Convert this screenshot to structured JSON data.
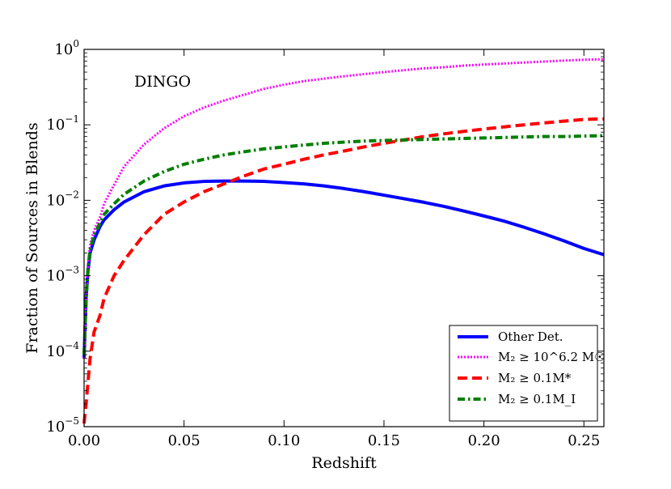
{
  "chart_data": {
    "type": "line",
    "title": "",
    "annotation": "DINGO",
    "xlabel": "Redshift",
    "ylabel": "Fraction of Sources in Blends",
    "xlim": [
      0.0,
      0.26
    ],
    "ylim": [
      1e-05,
      1.0
    ],
    "yscale": "log",
    "grid": false,
    "legend_position": "bottom-right",
    "x_ticks": [
      {
        "value": 0.0,
        "label": "0.00"
      },
      {
        "value": 0.05,
        "label": "0.05"
      },
      {
        "value": 0.1,
        "label": "0.10"
      },
      {
        "value": 0.15,
        "label": "0.15"
      },
      {
        "value": 0.2,
        "label": "0.20"
      },
      {
        "value": 0.25,
        "label": "0.25"
      }
    ],
    "y_ticks": [
      {
        "value": 1e-05,
        "base": "10",
        "exp": "−5"
      },
      {
        "value": 0.0001,
        "base": "10",
        "exp": "−4"
      },
      {
        "value": 0.001,
        "base": "10",
        "exp": "−3"
      },
      {
        "value": 0.01,
        "base": "10",
        "exp": "−2"
      },
      {
        "value": 0.1,
        "base": "10",
        "exp": "−1"
      },
      {
        "value": 1.0,
        "base": "10",
        "exp": "0"
      }
    ],
    "series": [
      {
        "name": "Other Det.",
        "color": "#0000ff",
        "style": "solid",
        "x": [
          0.0,
          0.001,
          0.002,
          0.003,
          0.005,
          0.008,
          0.01,
          0.015,
          0.02,
          0.03,
          0.04,
          0.05,
          0.06,
          0.07,
          0.08,
          0.09,
          0.1,
          0.11,
          0.12,
          0.13,
          0.14,
          0.15,
          0.16,
          0.17,
          0.18,
          0.19,
          0.2,
          0.21,
          0.22,
          0.23,
          0.24,
          0.25,
          0.26
        ],
        "y": [
          8e-05,
          0.0005,
          0.0012,
          0.002,
          0.003,
          0.0045,
          0.0055,
          0.0075,
          0.0095,
          0.013,
          0.0155,
          0.017,
          0.0178,
          0.018,
          0.018,
          0.0178,
          0.0172,
          0.0165,
          0.0155,
          0.0143,
          0.013,
          0.0117,
          0.0105,
          0.0094,
          0.0083,
          0.0072,
          0.0062,
          0.0053,
          0.0044,
          0.0036,
          0.0029,
          0.0023,
          0.0019
        ]
      },
      {
        "name": "M₂ ≥ 10^6.2 M☉",
        "color": "#ff00ff",
        "style": "dotted",
        "x": [
          0.0,
          0.001,
          0.002,
          0.003,
          0.005,
          0.008,
          0.01,
          0.015,
          0.02,
          0.03,
          0.04,
          0.05,
          0.06,
          0.07,
          0.08,
          0.09,
          0.1,
          0.11,
          0.12,
          0.13,
          0.14,
          0.15,
          0.16,
          0.17,
          0.18,
          0.19,
          0.2,
          0.21,
          0.22,
          0.23,
          0.24,
          0.25,
          0.26
        ],
        "y": [
          8e-05,
          0.0005,
          0.0014,
          0.0025,
          0.004,
          0.006,
          0.009,
          0.016,
          0.028,
          0.055,
          0.09,
          0.13,
          0.17,
          0.21,
          0.25,
          0.3,
          0.34,
          0.38,
          0.41,
          0.44,
          0.47,
          0.5,
          0.53,
          0.56,
          0.58,
          0.61,
          0.63,
          0.65,
          0.67,
          0.69,
          0.71,
          0.73,
          0.74
        ]
      },
      {
        "name": "M₂ ≥ 0.1M*",
        "color": "#ff0000",
        "style": "dashed",
        "x": [
          0.0,
          0.001,
          0.002,
          0.003,
          0.005,
          0.008,
          0.01,
          0.015,
          0.02,
          0.03,
          0.04,
          0.05,
          0.06,
          0.07,
          0.08,
          0.09,
          0.1,
          0.11,
          0.12,
          0.13,
          0.14,
          0.15,
          0.16,
          0.17,
          0.18,
          0.19,
          0.2,
          0.21,
          0.22,
          0.23,
          0.24,
          0.25,
          0.26
        ],
        "y": [
          1.1e-05,
          2e-05,
          4e-05,
          8e-05,
          0.00018,
          0.0003,
          0.0005,
          0.001,
          0.0016,
          0.0035,
          0.0065,
          0.0095,
          0.013,
          0.0165,
          0.021,
          0.026,
          0.03,
          0.035,
          0.04,
          0.045,
          0.051,
          0.057,
          0.063,
          0.07,
          0.076,
          0.082,
          0.088,
          0.094,
          0.1,
          0.106,
          0.112,
          0.118,
          0.12
        ]
      },
      {
        "name": "M₂ ≥ 0.1M_I",
        "color": "#007f00",
        "style": "dashdot",
        "x": [
          0.0,
          0.001,
          0.002,
          0.003,
          0.005,
          0.008,
          0.01,
          0.015,
          0.02,
          0.03,
          0.04,
          0.05,
          0.06,
          0.07,
          0.08,
          0.09,
          0.1,
          0.11,
          0.12,
          0.13,
          0.14,
          0.15,
          0.16,
          0.17,
          0.18,
          0.19,
          0.2,
          0.21,
          0.22,
          0.23,
          0.24,
          0.25,
          0.26
        ],
        "y": [
          9e-05,
          0.0005,
          0.0013,
          0.0022,
          0.0035,
          0.005,
          0.0065,
          0.009,
          0.012,
          0.018,
          0.024,
          0.03,
          0.035,
          0.04,
          0.044,
          0.048,
          0.051,
          0.054,
          0.057,
          0.059,
          0.061,
          0.062,
          0.063,
          0.064,
          0.065,
          0.066,
          0.067,
          0.068,
          0.069,
          0.07,
          0.07,
          0.071,
          0.072
        ]
      }
    ]
  }
}
